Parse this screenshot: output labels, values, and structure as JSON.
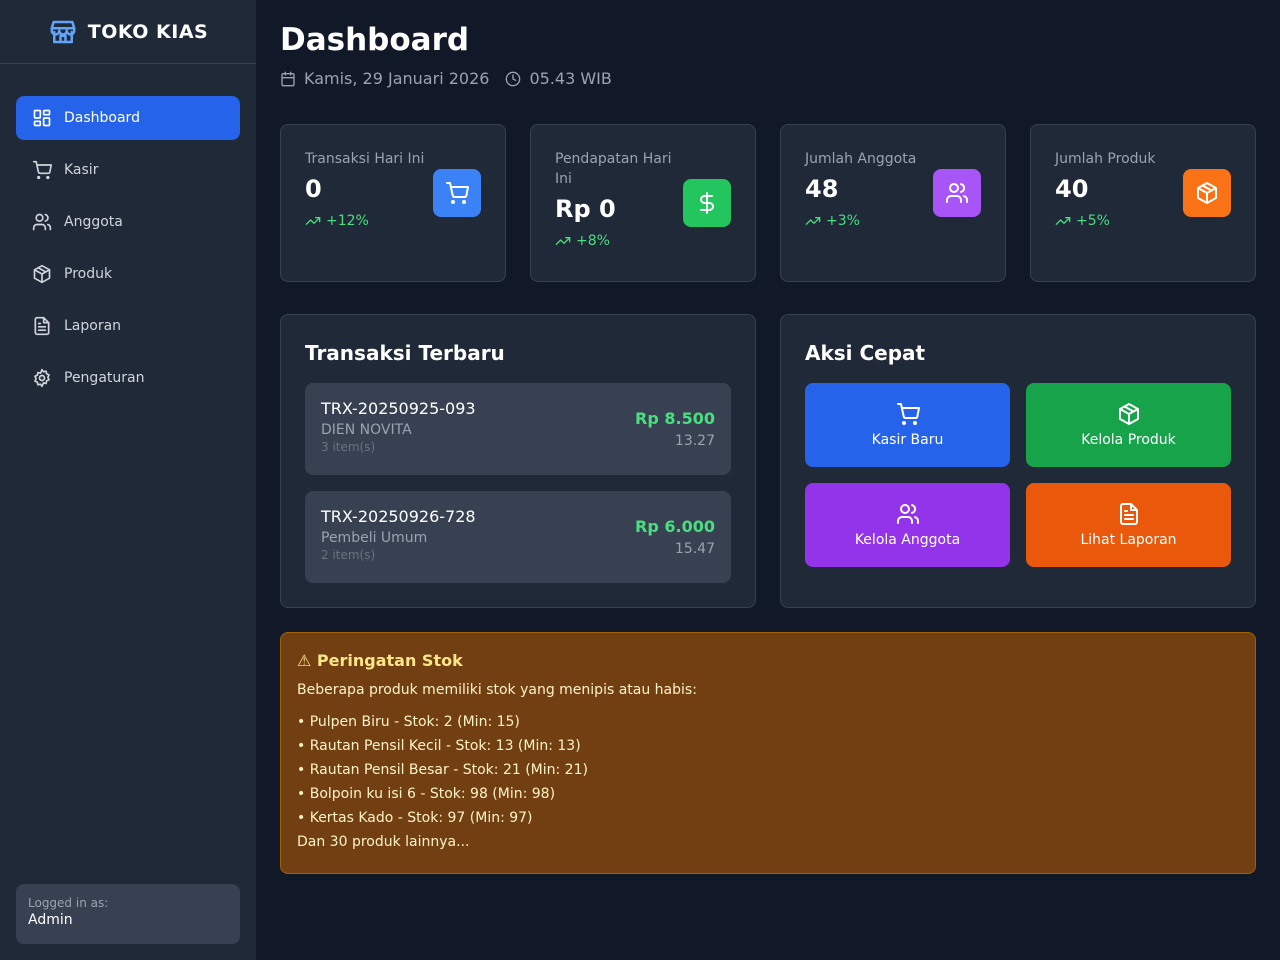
{
  "app": {
    "name": "TOKO KIAS"
  },
  "sidebar": {
    "items": [
      {
        "label": "Dashboard",
        "icon": "dashboard-icon",
        "active": true
      },
      {
        "label": "Kasir",
        "icon": "cart-icon"
      },
      {
        "label": "Anggota",
        "icon": "users-icon"
      },
      {
        "label": "Produk",
        "icon": "package-icon"
      },
      {
        "label": "Laporan",
        "icon": "file-text-icon"
      },
      {
        "label": "Pengaturan",
        "icon": "gear-icon"
      }
    ],
    "user": {
      "label": "Logged in as:",
      "name": "Admin"
    }
  },
  "header": {
    "title": "Dashboard",
    "date": "Kamis, 29 Januari 2026",
    "time": "05.43 WIB"
  },
  "stats": [
    {
      "label": "Transaksi Hari Ini",
      "value": "0",
      "trend": "+12%",
      "icon": "cart-icon",
      "color": "#3b82f6"
    },
    {
      "label": "Pendapatan Hari Ini",
      "value": "Rp 0",
      "trend": "+8%",
      "icon": "dollar-icon",
      "color": "#22c55e"
    },
    {
      "label": "Jumlah Anggota",
      "value": "48",
      "trend": "+3%",
      "icon": "users-icon",
      "color": "#a855f7"
    },
    {
      "label": "Jumlah Produk",
      "value": "40",
      "trend": "+5%",
      "icon": "package-icon",
      "color": "#f97316"
    }
  ],
  "recent": {
    "title": "Transaksi Terbaru",
    "items": [
      {
        "id": "TRX-20250925-093",
        "customer": "DIEN NOVITA",
        "items": "3 item(s)",
        "amount": "Rp 8.500",
        "time": "13.27"
      },
      {
        "id": "TRX-20250926-728",
        "customer": "Pembeli Umum",
        "items": "2 item(s)",
        "amount": "Rp 6.000",
        "time": "15.47"
      }
    ]
  },
  "quick": {
    "title": "Aksi Cepat",
    "actions": [
      {
        "label": "Kasir Baru",
        "icon": "cart-icon",
        "color": "#2563eb"
      },
      {
        "label": "Kelola Produk",
        "icon": "package-icon",
        "color": "#16a34a"
      },
      {
        "label": "Kelola Anggota",
        "icon": "users-icon",
        "color": "#9333ea"
      },
      {
        "label": "Lihat Laporan",
        "icon": "file-text-icon",
        "color": "#ea580c"
      }
    ]
  },
  "stock_alert": {
    "title": "⚠ Peringatan Stok",
    "description": "Beberapa produk memiliki stok yang menipis atau habis:",
    "items": [
      "• Pulpen Biru - Stok: 2 (Min: 15)",
      "• Rautan Pensil Kecil - Stok: 13 (Min: 13)",
      "• Rautan Pensil Besar - Stok: 21 (Min: 21)",
      "• Bolpoin ku isi 6 - Stok: 98 (Min: 98)",
      "• Kertas Kado - Stok: 97 (Min: 97)"
    ],
    "more": "Dan 30 produk lainnya..."
  }
}
